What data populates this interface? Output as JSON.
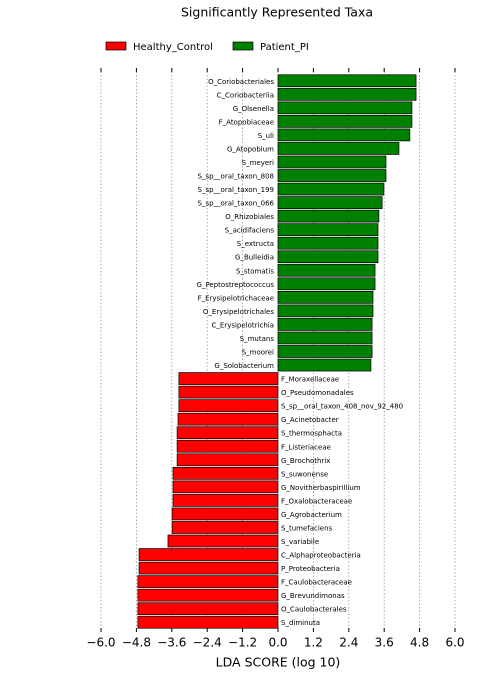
{
  "chart_data": {
    "type": "bar",
    "orientation": "horizontal",
    "title": "Significantly Represented Taxa",
    "xlabel": "LDA SCORE (log 10)",
    "categories": [
      "O_Coriobacteriales",
      "C_Coriobacteriia",
      "G_Olsenella",
      "F_Atopobiaceae",
      "S_uli",
      "G_Atopobium",
      "S_meyeri",
      "S_sp__oral_taxon_808",
      "S_sp__oral_taxon_199",
      "S_sp__oral_taxon_066",
      "O_Rhizobiales",
      "S_acidifaciens",
      "S_extructa",
      "G_Bulleidia",
      "S_stomatis",
      "G_Peptostreptococcus",
      "F_Erysipelotrichaceae",
      "O_Erysipelotrichales",
      "C_Erysipelotrichia",
      "S_mutans",
      "S_moorei",
      "G_Solobacterium",
      "F_Moraxellaceae",
      "O_Pseudomonadales",
      "S_sp__oral_taxon_408_nov_92_480",
      "G_Acinetobacter",
      "S_thermosphacta",
      "F_Listeriaceae",
      "G_Brochothrix",
      "S_suwonense",
      "G_Novitherbaspirillium",
      "F_Oxalobacteraceae",
      "G_Agrobacterium",
      "S_tumefaciens",
      "S_variabile",
      "C_Alphaproteobacteria",
      "P_Proteobacteria",
      "F_Caulobacteraceae",
      "G_Brevundimonas",
      "O_Caulobacterales",
      "S_diminuta"
    ],
    "series": [
      {
        "name": "Healthy_Control",
        "color": "#ff0000",
        "values": [
          null,
          null,
          null,
          null,
          null,
          null,
          null,
          null,
          null,
          null,
          null,
          null,
          null,
          null,
          null,
          null,
          null,
          null,
          null,
          null,
          null,
          null,
          -3.36,
          -3.36,
          -3.36,
          -3.39,
          -3.42,
          -3.42,
          -3.42,
          -3.56,
          -3.56,
          -3.56,
          -3.59,
          -3.59,
          -3.73,
          -4.71,
          -4.71,
          -4.75,
          -4.75,
          -4.75,
          -4.75
        ]
      },
      {
        "name": "Patient_PI",
        "color": "#008000",
        "values": [
          4.68,
          4.68,
          4.54,
          4.54,
          4.47,
          4.1,
          3.66,
          3.66,
          3.59,
          3.53,
          3.42,
          3.39,
          3.39,
          3.39,
          3.29,
          3.29,
          3.22,
          3.22,
          3.19,
          3.19,
          3.19,
          3.15,
          null,
          null,
          null,
          null,
          null,
          null,
          null,
          null,
          null,
          null,
          null,
          null,
          null,
          null,
          null,
          null,
          null,
          null,
          null
        ]
      }
    ],
    "xlim": [
      -6.0,
      6.0
    ],
    "xticks": [
      {
        "value": -6.0,
        "label": "−6.0"
      },
      {
        "value": -4.8,
        "label": "−4.8"
      },
      {
        "value": -3.6,
        "label": "−3.6"
      },
      {
        "value": -2.4,
        "label": "−2.4"
      },
      {
        "value": -1.2,
        "label": "−1.2"
      },
      {
        "value": 0,
        "label": "0.0"
      },
      1.2,
      2.4,
      3.6,
      4.8,
      {
        "value": 6.0,
        "label": "6.0"
      }
    ],
    "grid": true
  }
}
